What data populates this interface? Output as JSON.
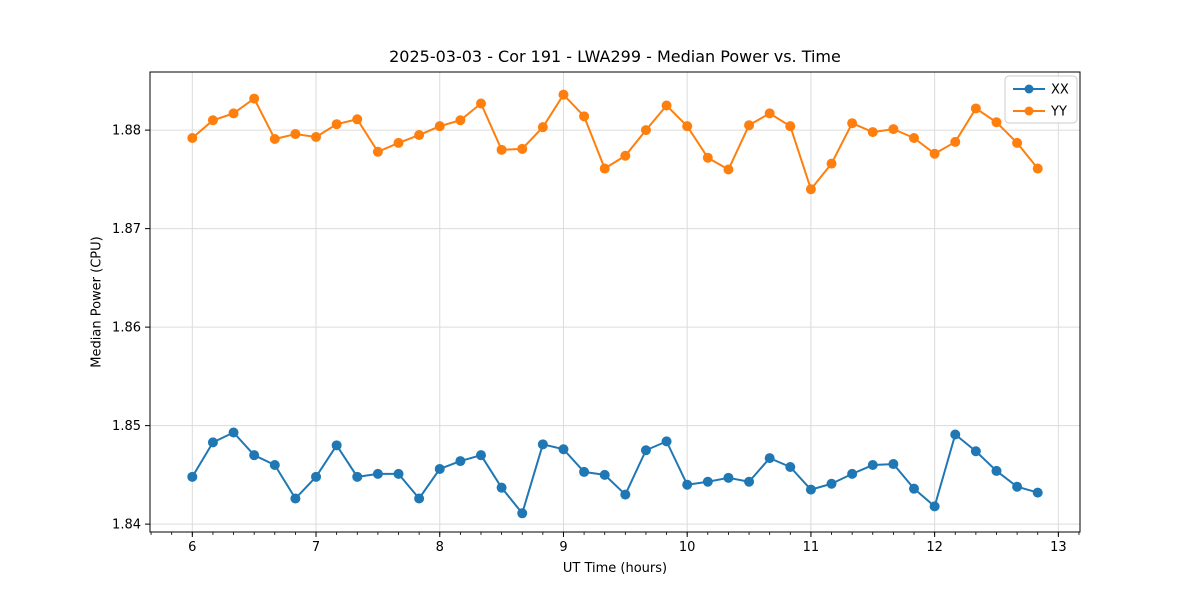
{
  "figure": {
    "title": "2025-03-03 - Cor 191 - LWA299 - Median Power vs. Time",
    "xlabel": "UT Time (hours)",
    "ylabel": "Median Power (CPU)",
    "background_color": "#ffffff",
    "grid_color": "#dcdcdc",
    "spine_color": "#000000"
  },
  "legend": {
    "position": "upper right",
    "entries": [
      {
        "label": "XX",
        "color": "#1f77b4"
      },
      {
        "label": "YY",
        "color": "#ff7f0e"
      }
    ]
  },
  "chart_data": {
    "type": "line",
    "title": "2025-03-03 - Cor 191 - LWA299 - Median Power vs. Time",
    "xlabel": "UT Time (hours)",
    "ylabel": "Median Power (CPU)",
    "xlim": [
      5.658,
      13.175
    ],
    "ylim": [
      1.8392,
      1.8859
    ],
    "grid": true,
    "legend_position": "upper right",
    "xticks": [
      6,
      7,
      8,
      9,
      10,
      11,
      12,
      13
    ],
    "xtick_labels": [
      "6",
      "7",
      "8",
      "9",
      "10",
      "11",
      "12",
      "13"
    ],
    "x_minor_step": 0.1666667,
    "yticks": [
      1.84,
      1.85,
      1.86,
      1.87,
      1.88
    ],
    "ytick_labels": [
      "1.84",
      "1.85",
      "1.86",
      "1.87",
      "1.88"
    ],
    "x": [
      6.0,
      6.1667,
      6.3333,
      6.5,
      6.6667,
      6.8333,
      7.0,
      7.1667,
      7.3333,
      7.5,
      7.6667,
      7.8333,
      8.0,
      8.1667,
      8.3333,
      8.5,
      8.6667,
      8.8333,
      9.0,
      9.1667,
      9.3333,
      9.5,
      9.6667,
      9.8333,
      10.0,
      10.1667,
      10.3333,
      10.5,
      10.6667,
      10.8333,
      11.0,
      11.1667,
      11.3333,
      11.5,
      11.6667,
      11.8333,
      12.0,
      12.1667,
      12.3333,
      12.5,
      12.6667,
      12.8333
    ],
    "series": [
      {
        "name": "XX",
        "color": "#1f77b4",
        "marker": "circle",
        "values": [
          1.8448,
          1.8483,
          1.8493,
          1.847,
          1.846,
          1.8426,
          1.8448,
          1.848,
          1.8448,
          1.8451,
          1.8451,
          1.8426,
          1.8456,
          1.8464,
          1.847,
          1.8437,
          1.8411,
          1.8481,
          1.8476,
          1.8453,
          1.845,
          1.843,
          1.8475,
          1.8484,
          1.844,
          1.8443,
          1.8447,
          1.8443,
          1.8467,
          1.8458,
          1.8435,
          1.8441,
          1.8451,
          1.846,
          1.8461,
          1.8436,
          1.8418,
          1.8491,
          1.8474,
          1.8454,
          1.8438,
          1.8432
        ]
      },
      {
        "name": "YY",
        "color": "#ff7f0e",
        "marker": "circle",
        "values": [
          1.8792,
          1.881,
          1.8817,
          1.8832,
          1.8791,
          1.8796,
          1.8793,
          1.8806,
          1.8811,
          1.8778,
          1.8787,
          1.8795,
          1.8804,
          1.881,
          1.8827,
          1.878,
          1.8781,
          1.8803,
          1.8836,
          1.8814,
          1.8761,
          1.8774,
          1.88,
          1.8825,
          1.8804,
          1.8772,
          1.876,
          1.8805,
          1.8817,
          1.8804,
          1.874,
          1.8766,
          1.8807,
          1.8798,
          1.8801,
          1.8792,
          1.8776,
          1.8788,
          1.8822,
          1.8808,
          1.8787,
          1.8761
        ]
      }
    ]
  }
}
